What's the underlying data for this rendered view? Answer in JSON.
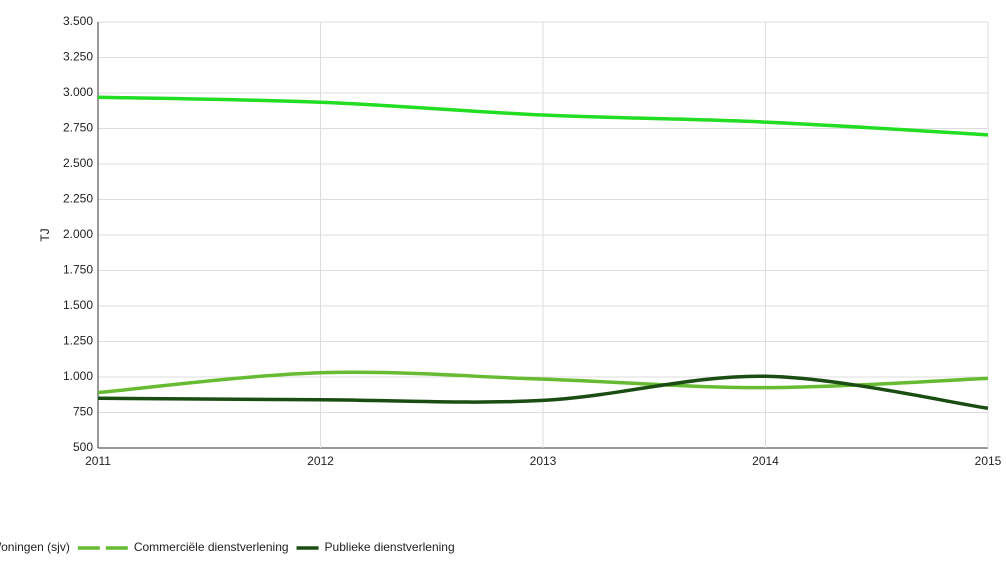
{
  "chart_data": {
    "type": "line",
    "y_label": "TJ",
    "categories": [
      "2011",
      "2012",
      "2013",
      "2014",
      "2015"
    ],
    "series": [
      {
        "name": "Woningen (sjv)",
        "color": "#22dd22",
        "values": [
          2970,
          2935,
          2845,
          2795,
          2705
        ]
      },
      {
        "name": "Commerciële dienstverlening",
        "color": "#66bb33",
        "values": [
          890,
          1030,
          985,
          925,
          990
        ]
      },
      {
        "name": "Publieke dienstverlening",
        "color": "#1a4d12",
        "values": [
          850,
          840,
          835,
          1005,
          780
        ]
      }
    ],
    "ylim": [
      500,
      3500
    ],
    "yticks": [
      500,
      750,
      {
        "value": 1000,
        "label": "1.000"
      },
      {
        "value": 1250,
        "label": "1.250"
      },
      {
        "value": 1500,
        "label": "1.500"
      },
      {
        "value": 1750,
        "label": "1.750"
      },
      {
        "value": 2000,
        "label": "2.000"
      },
      {
        "value": 2250,
        "label": "2.250"
      },
      {
        "value": 2500,
        "label": "2.500"
      },
      {
        "value": 2750,
        "label": "2.750"
      },
      {
        "value": 3000,
        "label": "3.000"
      },
      {
        "value": 3250,
        "label": "3.250"
      },
      {
        "value": 3500,
        "label": "3.500"
      }
    ],
    "grid": true,
    "legend": "bottom"
  }
}
